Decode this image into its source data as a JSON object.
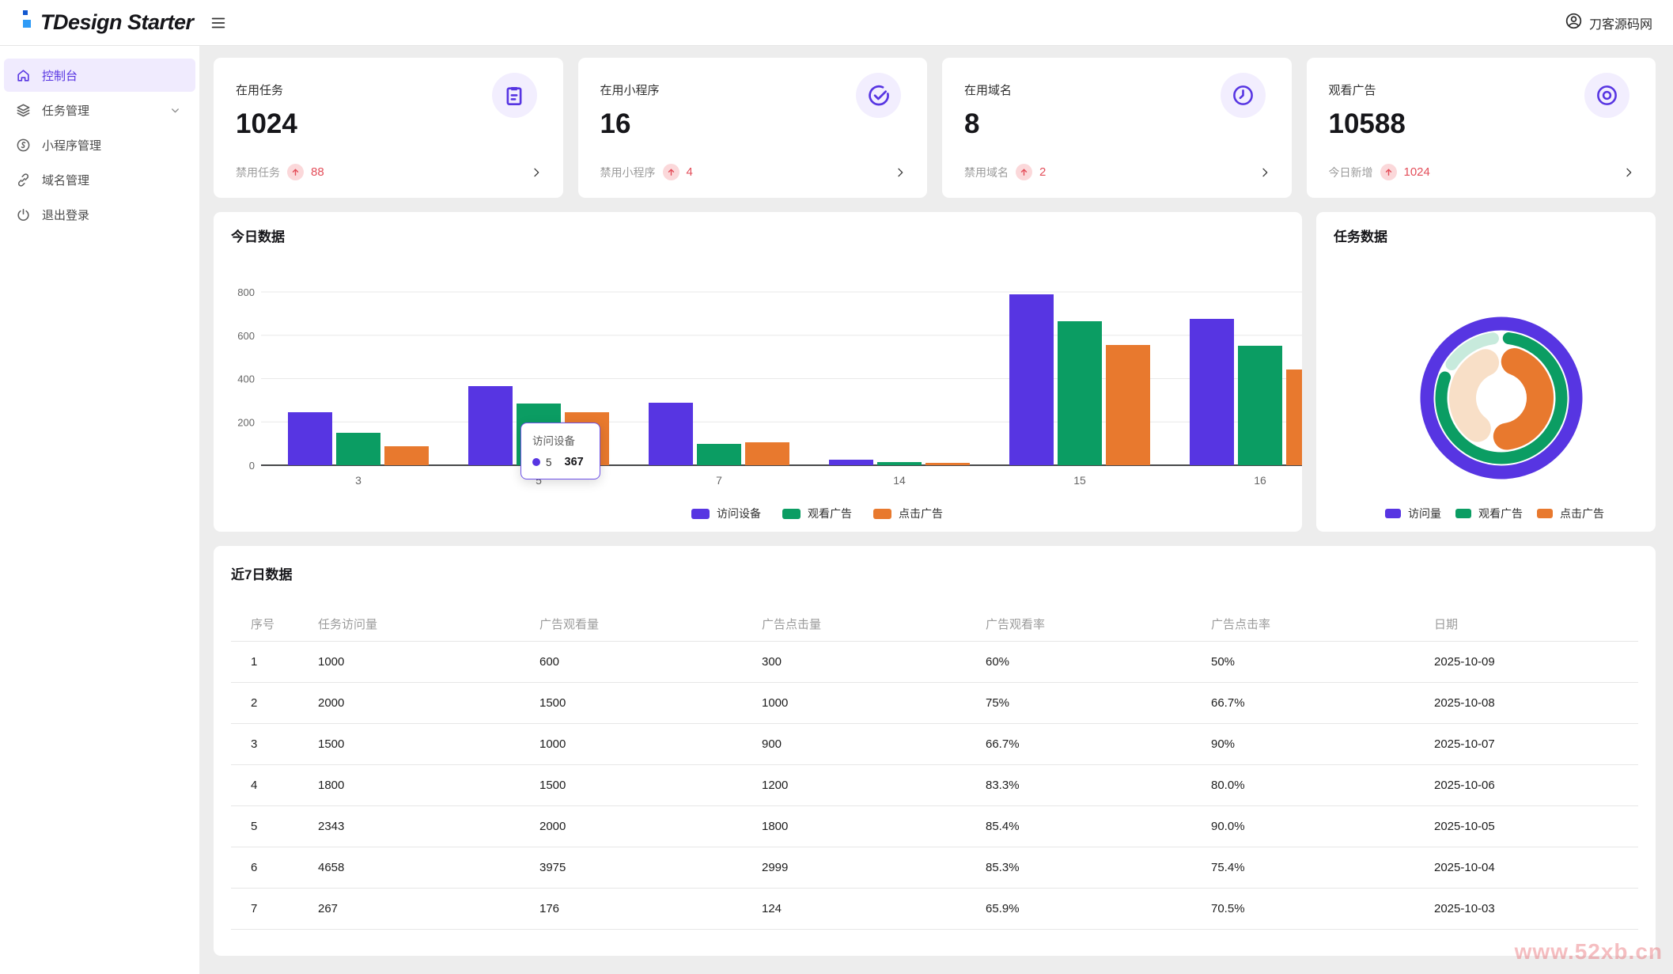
{
  "topbar": {
    "logo_text": "TDesign Starter",
    "user_name": "刀客源码网"
  },
  "sidebar": {
    "items": [
      {
        "label": "控制台",
        "icon": "home-icon",
        "active": true
      },
      {
        "label": "任务管理",
        "icon": "layers-icon",
        "has_submenu": true
      },
      {
        "label": "小程序管理",
        "icon": "miniprogram-icon"
      },
      {
        "label": "域名管理",
        "icon": "link-icon"
      },
      {
        "label": "退出登录",
        "icon": "power-icon"
      }
    ]
  },
  "stat_cards": [
    {
      "label": "在用任务",
      "value": "1024",
      "icon": "clipboard-icon",
      "sub_label": "禁用任务",
      "trend": "up",
      "trend_value": "88"
    },
    {
      "label": "在用小程序",
      "value": "16",
      "icon": "check-circle-icon",
      "sub_label": "禁用小程序",
      "trend": "up",
      "trend_value": "4"
    },
    {
      "label": "在用域名",
      "value": "8",
      "icon": "clock-icon",
      "sub_label": "禁用域名",
      "trend": "up",
      "trend_value": "2"
    },
    {
      "label": "观看广告",
      "value": "10588",
      "icon": "browse-icon",
      "sub_label": "今日新增",
      "trend": "up",
      "trend_value": "1024"
    }
  ],
  "colors": {
    "accent_purple": "#5735E2",
    "green": "#0B9D63",
    "orange": "#E8792E",
    "error_red": "#E34D59",
    "badge_pink": "#FBD8DA",
    "active_menu_bg": "#F0EBFE",
    "donut_green_rest": "#C7EADC",
    "donut_orange_rest": "#F8DFC7",
    "grid_line": "#E9E9E9",
    "axis_line": "#47484A"
  },
  "chart_data": [
    {
      "type": "bar",
      "title": "今日数据",
      "categories": [
        "3",
        "5",
        "7",
        "14",
        "15",
        "16"
      ],
      "series": [
        {
          "name": "访问设备",
          "color": "#5735E2",
          "values": [
            245,
            367,
            288,
            25,
            790,
            676
          ]
        },
        {
          "name": "观看广告",
          "color": "#0B9D63",
          "values": [
            148,
            285,
            100,
            15,
            665,
            552
          ]
        },
        {
          "name": "点击广告",
          "color": "#E8792E",
          "values": [
            88,
            245,
            105,
            12,
            555,
            443
          ]
        }
      ],
      "ylim": [
        0,
        800
      ],
      "yticks": [
        0,
        200,
        400,
        600,
        800
      ],
      "grid": true,
      "legend_position": "bottom",
      "tooltip": {
        "title": "访问设备",
        "label": "5",
        "value": "367"
      }
    },
    {
      "type": "donut",
      "title": "任务数据",
      "legend_position": "bottom",
      "rings": [
        {
          "name": "访问量",
          "color": "#5735E2",
          "percent": 100,
          "full": true
        },
        {
          "name": "观看广告",
          "color": "#0B9D63",
          "percent": 82,
          "arc": [
            7,
            290
          ],
          "rest": {
            "color": "#C7EADC",
            "arc": [
              304,
              352
            ]
          }
        },
        {
          "name": "点击广告",
          "color": "#E8792E",
          "percent": 53,
          "arc": [
            20,
            172
          ],
          "rest": {
            "color": "#F8DFC7",
            "arc": [
              218,
              336
            ]
          }
        }
      ]
    }
  ],
  "table": {
    "title": "近7日数据",
    "columns": [
      "序号",
      "任务访问量",
      "广告观看量",
      "广告点击量",
      "广告观看率",
      "广告点击率",
      "日期"
    ],
    "rows": [
      [
        "1",
        "1000",
        "600",
        "300",
        "60%",
        "50%",
        "2025-10-09"
      ],
      [
        "2",
        "2000",
        "1500",
        "1000",
        "75%",
        "66.7%",
        "2025-10-08"
      ],
      [
        "3",
        "1500",
        "1000",
        "900",
        "66.7%",
        "90%",
        "2025-10-07"
      ],
      [
        "4",
        "1800",
        "1500",
        "1200",
        "83.3%",
        "80.0%",
        "2025-10-06"
      ],
      [
        "5",
        "2343",
        "2000",
        "1800",
        "85.4%",
        "90.0%",
        "2025-10-05"
      ],
      [
        "6",
        "4658",
        "3975",
        "2999",
        "85.3%",
        "75.4%",
        "2025-10-04"
      ],
      [
        "7",
        "267",
        "176",
        "124",
        "65.9%",
        "70.5%",
        "2025-10-03"
      ]
    ]
  },
  "watermark": "www.52xb.cn"
}
